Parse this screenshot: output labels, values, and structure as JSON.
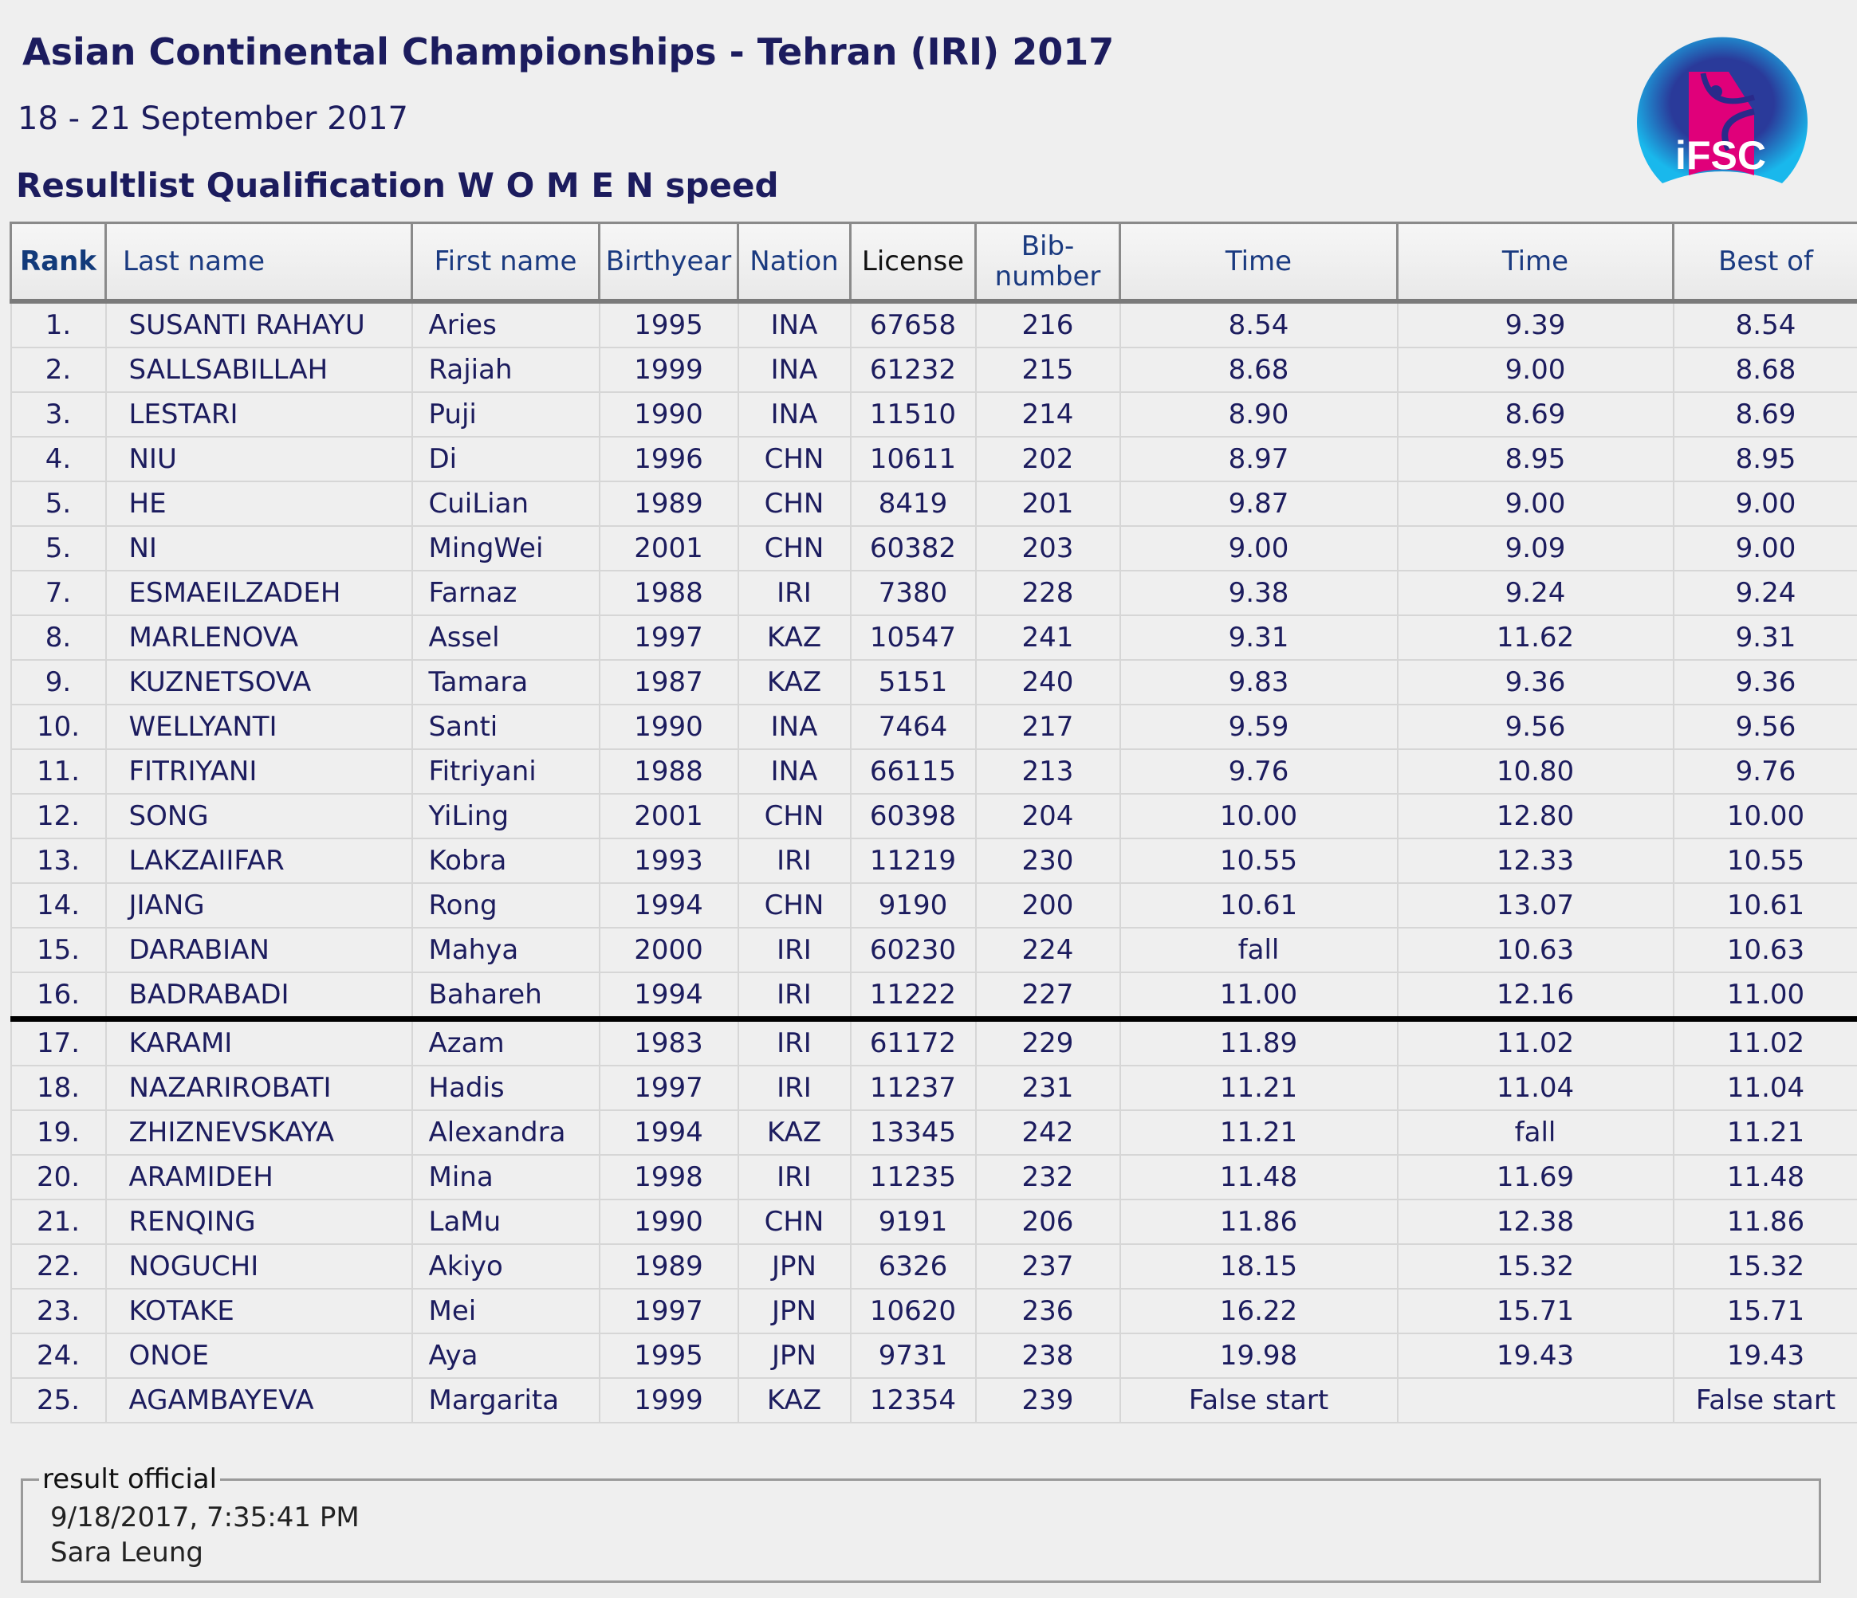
{
  "header": {
    "title": "Asian Continental Championships - Tehran (IRI) 2017",
    "dates": "18  - 21 September 2017",
    "subtitle": "Resultlist Qualification  W O M E N speed",
    "logo_text": "iFSC"
  },
  "colors": {
    "logo_pink": "#e0007a",
    "logo_blue": "#1ab4ea",
    "logo_navy": "#2a2a8a",
    "text": "#1c1c5e"
  },
  "table": {
    "columns": [
      "Rank",
      "Last name",
      "First name",
      "Birthyear",
      "Nation",
      "License",
      "Bib-number",
      "Time",
      "Time",
      "Best of"
    ],
    "cutoff_after_rank_row": 16,
    "rows": [
      [
        "1.",
        "SUSANTI RAHAYU",
        "Aries",
        "1995",
        "INA",
        "67658",
        "216",
        "8.54",
        "9.39",
        "8.54"
      ],
      [
        "2.",
        "SALLSABILLAH",
        "Rajiah",
        "1999",
        "INA",
        "61232",
        "215",
        "8.68",
        "9.00",
        "8.68"
      ],
      [
        "3.",
        "LESTARI",
        "Puji",
        "1990",
        "INA",
        "11510",
        "214",
        "8.90",
        "8.69",
        "8.69"
      ],
      [
        "4.",
        "NIU",
        "Di",
        "1996",
        "CHN",
        "10611",
        "202",
        "8.97",
        "8.95",
        "8.95"
      ],
      [
        "5.",
        "HE",
        "CuiLian",
        "1989",
        "CHN",
        "8419",
        "201",
        "9.87",
        "9.00",
        "9.00"
      ],
      [
        "5.",
        "NI",
        "MingWei",
        "2001",
        "CHN",
        "60382",
        "203",
        "9.00",
        "9.09",
        "9.00"
      ],
      [
        "7.",
        "ESMAEILZADEH",
        "Farnaz",
        "1988",
        "IRI",
        "7380",
        "228",
        "9.38",
        "9.24",
        "9.24"
      ],
      [
        "8.",
        "MARLENOVA",
        "Assel",
        "1997",
        "KAZ",
        "10547",
        "241",
        "9.31",
        "11.62",
        "9.31"
      ],
      [
        "9.",
        "KUZNETSOVA",
        "Tamara",
        "1987",
        "KAZ",
        "5151",
        "240",
        "9.83",
        "9.36",
        "9.36"
      ],
      [
        "10.",
        "WELLYANTI",
        "Santi",
        "1990",
        "INA",
        "7464",
        "217",
        "9.59",
        "9.56",
        "9.56"
      ],
      [
        "11.",
        "FITRIYANI",
        "Fitriyani",
        "1988",
        "INA",
        "66115",
        "213",
        "9.76",
        "10.80",
        "9.76"
      ],
      [
        "12.",
        "SONG",
        "YiLing",
        "2001",
        "CHN",
        "60398",
        "204",
        "10.00",
        "12.80",
        "10.00"
      ],
      [
        "13.",
        "LAKZAIIFAR",
        "Kobra",
        "1993",
        "IRI",
        "11219",
        "230",
        "10.55",
        "12.33",
        "10.55"
      ],
      [
        "14.",
        "JIANG",
        "Rong",
        "1994",
        "CHN",
        "9190",
        "200",
        "10.61",
        "13.07",
        "10.61"
      ],
      [
        "15.",
        "DARABIAN",
        "Mahya",
        "2000",
        "IRI",
        "60230",
        "224",
        "fall",
        "10.63",
        "10.63"
      ],
      [
        "16.",
        "BADRABADI",
        "Bahareh",
        "1994",
        "IRI",
        "11222",
        "227",
        "11.00",
        "12.16",
        "11.00"
      ],
      [
        "17.",
        "KARAMI",
        "Azam",
        "1983",
        "IRI",
        "61172",
        "229",
        "11.89",
        "11.02",
        "11.02"
      ],
      [
        "18.",
        "NAZARIROBATI",
        "Hadis",
        "1997",
        "IRI",
        "11237",
        "231",
        "11.21",
        "11.04",
        "11.04"
      ],
      [
        "19.",
        "ZHIZNEVSKAYA",
        "Alexandra",
        "1994",
        "KAZ",
        "13345",
        "242",
        "11.21",
        "fall",
        "11.21"
      ],
      [
        "20.",
        "ARAMIDEH",
        "Mina",
        "1998",
        "IRI",
        "11235",
        "232",
        "11.48",
        "11.69",
        "11.48"
      ],
      [
        "21.",
        "RENQING",
        "LaMu",
        "1990",
        "CHN",
        "9191",
        "206",
        "11.86",
        "12.38",
        "11.86"
      ],
      [
        "22.",
        "NOGUCHI",
        "Akiyo",
        "1989",
        "JPN",
        "6326",
        "237",
        "18.15",
        "15.32",
        "15.32"
      ],
      [
        "23.",
        "KOTAKE",
        "Mei",
        "1997",
        "JPN",
        "10620",
        "236",
        "16.22",
        "15.71",
        "15.71"
      ],
      [
        "24.",
        "ONOE",
        "Aya",
        "1995",
        "JPN",
        "9731",
        "238",
        "19.98",
        "19.43",
        "19.43"
      ],
      [
        "25.",
        "AGAMBAYEVA",
        "Margarita",
        "1999",
        "KAZ",
        "12354",
        "239",
        "False start",
        "",
        "False start"
      ]
    ]
  },
  "footer": {
    "legend": "result official",
    "timestamp": "9/18/2017, 7:35:41 PM",
    "official": "Sara Leung"
  }
}
